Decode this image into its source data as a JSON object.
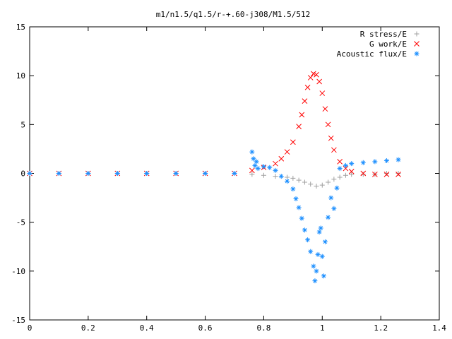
{
  "chart_data": {
    "type": "scatter",
    "title": "m1/n1.5/q1.5/r-+.60-j308/M1.5/512",
    "xlabel": "",
    "ylabel": "",
    "xlim": [
      0,
      1.4
    ],
    "ylim": [
      -15,
      15
    ],
    "xticks": [
      0,
      0.2,
      0.4,
      0.6,
      0.8,
      1,
      1.2,
      1.4
    ],
    "yticks": [
      -15,
      -10,
      -5,
      0,
      5,
      10,
      15
    ],
    "xtick_labels": [
      "0",
      "0.2",
      "0.4",
      "0.6",
      "0.8",
      "1",
      "1.2",
      "1.4"
    ],
    "ytick_labels": [
      "-15",
      "-10",
      "-5",
      "0",
      "5",
      "10",
      "15"
    ],
    "grid": false,
    "legend_position": "top-right",
    "series": [
      {
        "name": "R stress/E",
        "marker": "+",
        "color": "#a0a0a0",
        "x": [
          0.0,
          0.1,
          0.2,
          0.3,
          0.4,
          0.5,
          0.6,
          0.7,
          0.76,
          0.8,
          0.84,
          0.88,
          0.9,
          0.92,
          0.94,
          0.96,
          0.98,
          1.0,
          1.02,
          1.04,
          1.06,
          1.08,
          1.1,
          1.14,
          1.18,
          1.22,
          1.26
        ],
        "y": [
          0,
          0,
          0,
          0,
          0,
          0,
          0,
          0,
          -0.1,
          -0.2,
          -0.3,
          -0.4,
          -0.5,
          -0.7,
          -0.9,
          -1.1,
          -1.3,
          -1.2,
          -0.9,
          -0.6,
          -0.4,
          -0.2,
          -0.1,
          -0.1,
          -0.1,
          0,
          0
        ]
      },
      {
        "name": "G work/E",
        "marker": "x",
        "color": "#ff0000",
        "x": [
          0.0,
          0.1,
          0.2,
          0.3,
          0.4,
          0.5,
          0.6,
          0.7,
          0.76,
          0.8,
          0.84,
          0.86,
          0.88,
          0.9,
          0.92,
          0.93,
          0.94,
          0.95,
          0.96,
          0.97,
          0.98,
          0.99,
          1.0,
          1.01,
          1.02,
          1.03,
          1.04,
          1.06,
          1.08,
          1.1,
          1.14,
          1.18,
          1.22,
          1.26
        ],
        "y": [
          0,
          0,
          0,
          0,
          0,
          0,
          0,
          0,
          0.3,
          0.6,
          1.0,
          1.5,
          2.2,
          3.2,
          4.8,
          6.0,
          7.4,
          8.8,
          9.8,
          10.2,
          10.1,
          9.4,
          8.2,
          6.6,
          5.0,
          3.6,
          2.4,
          1.2,
          0.5,
          0.2,
          0,
          -0.1,
          -0.1,
          -0.1
        ]
      },
      {
        "name": "Acoustic flux/E",
        "marker": "*",
        "color": "#1e90ff",
        "x": [
          0.0,
          0.1,
          0.2,
          0.3,
          0.4,
          0.5,
          0.6,
          0.7,
          0.76,
          0.765,
          0.77,
          0.775,
          0.78,
          0.8,
          0.82,
          0.84,
          0.86,
          0.88,
          0.9,
          0.91,
          0.92,
          0.93,
          0.94,
          0.95,
          0.96,
          0.97,
          0.975,
          0.98,
          0.985,
          0.99,
          0.995,
          1.0,
          1.005,
          1.01,
          1.02,
          1.03,
          1.04,
          1.05,
          1.06,
          1.08,
          1.1,
          1.14,
          1.18,
          1.22,
          1.26
        ],
        "y": [
          0,
          0,
          0,
          0,
          0,
          0,
          0,
          0,
          2.2,
          1.5,
          0.8,
          1.2,
          0.5,
          0.7,
          0.6,
          0.3,
          -0.3,
          -0.8,
          -1.6,
          -2.6,
          -3.5,
          -4.6,
          -5.8,
          -6.8,
          -8.0,
          -9.5,
          -11.0,
          -10.0,
          -8.3,
          -6.0,
          -5.6,
          -8.5,
          -10.5,
          -7.0,
          -4.5,
          -2.5,
          -3.6,
          -1.5,
          0.5,
          0.8,
          1.0,
          1.1,
          1.2,
          1.3,
          1.4
        ]
      }
    ]
  }
}
